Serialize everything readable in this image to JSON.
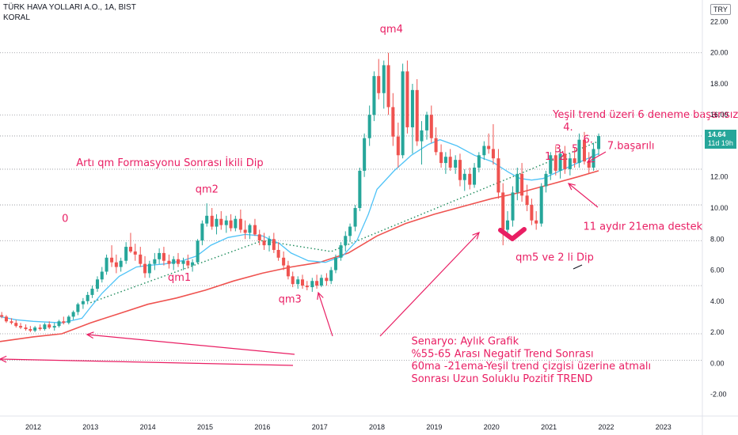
{
  "header": {
    "title": "TÜRK HAVA YOLLARI A.O., 1A, BIST",
    "indicator": "KORAL",
    "currency": "TRY"
  },
  "price_tag": {
    "value": "14.64",
    "countdown": "11d 19h"
  },
  "chart_data": {
    "type": "candlestick",
    "interval": "1 month",
    "yaxis_ticks": [
      "22.00",
      "20.00",
      "18.00",
      "16.00",
      "14.00",
      "12.00",
      "10.00",
      "8.00",
      "6.00",
      "4.00",
      "2.00",
      "0.00",
      "-2.00"
    ],
    "xaxis_ticks": [
      "2012",
      "2013",
      "2014",
      "2015",
      "2016",
      "2017",
      "2018",
      "2019",
      "2020",
      "2021",
      "2022",
      "2023"
    ],
    "ylim": [
      -3.4,
      23.4
    ],
    "xlim": [
      2011.42,
      2023.68
    ],
    "last_price": 14.64,
    "horizontal_levels": [
      20.0,
      16.0,
      14.64,
      12.5,
      10.2,
      7.9,
      5.0,
      1.9,
      0.2
    ],
    "candles": [
      [
        2011.45,
        3.1,
        3.3,
        2.9,
        3.0
      ],
      [
        2011.53,
        3.0,
        3.1,
        2.6,
        2.7
      ],
      [
        2011.62,
        2.7,
        2.9,
        2.5,
        2.6
      ],
      [
        2011.7,
        2.6,
        2.8,
        2.3,
        2.4
      ],
      [
        2011.78,
        2.4,
        2.6,
        2.2,
        2.3
      ],
      [
        2011.87,
        2.3,
        2.5,
        2.1,
        2.2
      ],
      [
        2011.95,
        2.2,
        2.4,
        2.0,
        2.1
      ],
      [
        2012.03,
        2.1,
        2.4,
        2.0,
        2.3
      ],
      [
        2012.12,
        2.3,
        2.5,
        2.1,
        2.2
      ],
      [
        2012.2,
        2.2,
        2.6,
        2.1,
        2.5
      ],
      [
        2012.28,
        2.5,
        2.7,
        2.2,
        2.3
      ],
      [
        2012.37,
        2.3,
        2.6,
        2.1,
        2.4
      ],
      [
        2012.45,
        2.4,
        2.8,
        2.3,
        2.7
      ],
      [
        2012.53,
        2.7,
        3.0,
        2.5,
        2.6
      ],
      [
        2012.62,
        2.6,
        3.1,
        2.5,
        3.0
      ],
      [
        2012.7,
        3.0,
        3.4,
        2.8,
        3.3
      ],
      [
        2012.78,
        3.3,
        3.9,
        3.1,
        3.8
      ],
      [
        2012.87,
        3.8,
        4.2,
        3.5,
        4.0
      ],
      [
        2012.95,
        4.0,
        4.6,
        3.8,
        4.4
      ],
      [
        2013.03,
        4.4,
        5.0,
        4.2,
        4.8
      ],
      [
        2013.12,
        4.8,
        5.6,
        4.6,
        5.4
      ],
      [
        2013.2,
        5.4,
        6.2,
        5.2,
        5.9
      ],
      [
        2013.28,
        5.9,
        7.0,
        5.7,
        6.8
      ],
      [
        2013.37,
        6.8,
        7.6,
        6.2,
        6.5
      ],
      [
        2013.45,
        6.5,
        7.0,
        5.8,
        6.2
      ],
      [
        2013.53,
        6.2,
        6.8,
        5.9,
        6.6
      ],
      [
        2013.62,
        6.6,
        7.8,
        6.4,
        7.5
      ],
      [
        2013.7,
        7.5,
        8.4,
        7.1,
        7.2
      ],
      [
        2013.78,
        7.2,
        7.7,
        6.6,
        7.0
      ],
      [
        2013.87,
        7.0,
        7.5,
        6.2,
        6.4
      ],
      [
        2013.95,
        6.4,
        6.9,
        5.5,
        5.8
      ],
      [
        2014.03,
        5.8,
        6.6,
        5.5,
        6.4
      ],
      [
        2014.12,
        6.4,
        7.1,
        6.0,
        6.7
      ],
      [
        2014.2,
        6.7,
        7.4,
        6.4,
        7.1
      ],
      [
        2014.28,
        7.1,
        7.5,
        6.3,
        6.6
      ],
      [
        2014.37,
        6.6,
        7.0,
        6.1,
        6.4
      ],
      [
        2014.45,
        6.4,
        6.9,
        6.0,
        6.7
      ],
      [
        2014.53,
        6.7,
        7.1,
        6.2,
        6.4
      ],
      [
        2014.62,
        6.4,
        6.8,
        6.0,
        6.6
      ],
      [
        2014.7,
        6.6,
        7.0,
        6.1,
        6.3
      ],
      [
        2014.78,
        6.3,
        6.7,
        5.9,
        6.5
      ],
      [
        2014.87,
        6.5,
        8.0,
        6.4,
        7.9
      ],
      [
        2014.95,
        7.9,
        9.2,
        7.6,
        9.0
      ],
      [
        2015.03,
        9.0,
        10.3,
        8.8,
        9.5
      ],
      [
        2015.12,
        9.5,
        10.0,
        8.6,
        8.8
      ],
      [
        2015.2,
        8.8,
        9.6,
        8.3,
        9.3
      ],
      [
        2015.28,
        9.3,
        9.8,
        8.6,
        8.9
      ],
      [
        2015.37,
        8.9,
        9.5,
        8.4,
        9.2
      ],
      [
        2015.45,
        9.2,
        9.6,
        8.5,
        8.7
      ],
      [
        2015.53,
        8.7,
        9.5,
        8.5,
        9.3
      ],
      [
        2015.62,
        9.3,
        9.9,
        8.4,
        8.6
      ],
      [
        2015.7,
        8.6,
        9.2,
        8.0,
        8.4
      ],
      [
        2015.78,
        8.4,
        9.0,
        8.0,
        8.9
      ],
      [
        2015.87,
        8.9,
        9.3,
        8.2,
        8.3
      ],
      [
        2015.95,
        8.3,
        8.6,
        7.6,
        7.9
      ],
      [
        2016.03,
        7.9,
        8.4,
        7.3,
        7.6
      ],
      [
        2016.12,
        7.6,
        8.2,
        7.2,
        8.0
      ],
      [
        2016.2,
        8.0,
        8.4,
        7.1,
        7.3
      ],
      [
        2016.28,
        7.3,
        7.8,
        6.6,
        6.8
      ],
      [
        2016.37,
        6.8,
        7.2,
        6.0,
        6.3
      ],
      [
        2016.45,
        6.3,
        6.6,
        5.4,
        5.6
      ],
      [
        2016.53,
        5.6,
        5.9,
        4.9,
        5.1
      ],
      [
        2016.62,
        5.1,
        5.6,
        4.8,
        5.4
      ],
      [
        2016.7,
        5.4,
        5.7,
        4.8,
        5.0
      ],
      [
        2016.78,
        5.0,
        5.3,
        4.7,
        4.9
      ],
      [
        2016.87,
        4.9,
        5.5,
        4.6,
        5.3
      ],
      [
        2016.95,
        5.3,
        5.7,
        4.8,
        5.0
      ],
      [
        2017.03,
        5.0,
        5.7,
        4.9,
        5.5
      ],
      [
        2017.12,
        5.5,
        5.8,
        5.0,
        5.3
      ],
      [
        2017.2,
        5.3,
        6.2,
        5.1,
        6.0
      ],
      [
        2017.28,
        6.0,
        7.0,
        5.8,
        6.8
      ],
      [
        2017.37,
        6.8,
        7.8,
        6.6,
        7.6
      ],
      [
        2017.45,
        7.6,
        8.5,
        7.2,
        8.2
      ],
      [
        2017.53,
        8.2,
        9.0,
        7.8,
        8.8
      ],
      [
        2017.62,
        8.8,
        10.2,
        8.5,
        10.0
      ],
      [
        2017.7,
        10.0,
        12.6,
        9.8,
        12.4
      ],
      [
        2017.78,
        12.4,
        14.8,
        12.0,
        14.5
      ],
      [
        2017.87,
        14.5,
        16.6,
        14.0,
        16.0
      ],
      [
        2017.95,
        16.0,
        18.8,
        15.6,
        18.5
      ],
      [
        2018.03,
        18.5,
        19.6,
        17.0,
        17.4
      ],
      [
        2018.12,
        17.4,
        19.5,
        16.4,
        19.2
      ],
      [
        2018.2,
        19.2,
        20.0,
        16.0,
        16.5
      ],
      [
        2018.28,
        16.5,
        17.4,
        14.0,
        14.6
      ],
      [
        2018.37,
        14.6,
        15.5,
        12.6,
        13.4
      ],
      [
        2018.45,
        13.4,
        19.3,
        13.2,
        18.8
      ],
      [
        2018.53,
        18.8,
        19.5,
        14.8,
        15.2
      ],
      [
        2018.62,
        15.2,
        18.0,
        13.5,
        17.6
      ],
      [
        2018.7,
        17.6,
        18.3,
        14.0,
        14.3
      ],
      [
        2018.78,
        14.3,
        15.6,
        12.8,
        15.0
      ],
      [
        2018.87,
        15.0,
        16.2,
        14.4,
        16.0
      ],
      [
        2018.95,
        16.0,
        16.6,
        14.2,
        14.5
      ],
      [
        2019.03,
        14.5,
        15.2,
        13.4,
        13.6
      ],
      [
        2019.12,
        13.6,
        14.1,
        12.6,
        12.9
      ],
      [
        2019.2,
        12.9,
        13.6,
        12.2,
        13.3
      ],
      [
        2019.28,
        13.3,
        13.8,
        12.4,
        12.6
      ],
      [
        2019.37,
        12.6,
        13.4,
        12.2,
        13.1
      ],
      [
        2019.45,
        13.1,
        13.5,
        11.4,
        11.8
      ],
      [
        2019.53,
        11.8,
        12.5,
        11.1,
        12.2
      ],
      [
        2019.62,
        12.2,
        12.6,
        11.2,
        11.5
      ],
      [
        2019.7,
        11.5,
        12.9,
        11.3,
        12.6
      ],
      [
        2019.78,
        12.6,
        13.6,
        12.3,
        13.4
      ],
      [
        2019.87,
        13.4,
        14.3,
        13.1,
        14.0
      ],
      [
        2019.95,
        14.0,
        14.8,
        13.5,
        13.8
      ],
      [
        2020.03,
        13.8,
        15.4,
        12.8,
        13.2
      ],
      [
        2020.12,
        13.2,
        13.8,
        10.6,
        11.0
      ],
      [
        2020.2,
        11.0,
        11.6,
        7.6,
        8.6
      ],
      [
        2020.28,
        8.6,
        9.8,
        8.2,
        9.2
      ],
      [
        2020.37,
        9.2,
        11.4,
        8.8,
        11.0
      ],
      [
        2020.45,
        11.0,
        12.6,
        10.5,
        12.2
      ],
      [
        2020.53,
        12.2,
        12.9,
        10.4,
        10.8
      ],
      [
        2020.62,
        10.8,
        11.5,
        9.8,
        10.2
      ],
      [
        2020.7,
        10.2,
        10.6,
        8.9,
        9.2
      ],
      [
        2020.78,
        9.2,
        9.8,
        8.6,
        9.0
      ],
      [
        2020.87,
        9.0,
        11.6,
        8.8,
        11.4
      ],
      [
        2020.95,
        11.4,
        12.4,
        11.0,
        12.2
      ],
      [
        2021.03,
        12.2,
        13.6,
        11.8,
        13.4
      ],
      [
        2021.12,
        13.4,
        14.0,
        12.1,
        12.4
      ],
      [
        2021.2,
        12.4,
        13.8,
        11.9,
        13.5
      ],
      [
        2021.28,
        13.5,
        14.0,
        12.2,
        12.5
      ],
      [
        2021.37,
        12.5,
        13.5,
        12.1,
        13.2
      ],
      [
        2021.45,
        13.2,
        13.9,
        12.6,
        12.9
      ],
      [
        2021.53,
        12.9,
        14.8,
        12.6,
        14.4
      ],
      [
        2021.62,
        14.4,
        14.9,
        12.8,
        13.0
      ],
      [
        2021.7,
        13.0,
        13.6,
        12.2,
        12.6
      ],
      [
        2021.78,
        12.6,
        14.2,
        12.4,
        13.8
      ],
      [
        2021.87,
        13.8,
        14.8,
        13.4,
        14.64
      ]
    ],
    "ema21": [
      [
        2011.42,
        3.0
      ],
      [
        2011.7,
        2.8
      ],
      [
        2012.0,
        2.7
      ],
      [
        2012.5,
        2.6
      ],
      [
        2012.85,
        2.9
      ],
      [
        2013.0,
        3.6
      ],
      [
        2013.2,
        4.5
      ],
      [
        2013.5,
        5.6
      ],
      [
        2013.8,
        6.2
      ],
      [
        2014.0,
        6.3
      ],
      [
        2014.3,
        6.4
      ],
      [
        2014.6,
        6.6
      ],
      [
        2014.85,
        6.9
      ],
      [
        2015.1,
        7.6
      ],
      [
        2015.4,
        8.1
      ],
      [
        2015.7,
        8.3
      ],
      [
        2016.0,
        8.2
      ],
      [
        2016.3,
        7.7
      ],
      [
        2016.5,
        7.1
      ],
      [
        2016.8,
        6.6
      ],
      [
        2017.1,
        6.5
      ],
      [
        2017.4,
        6.9
      ],
      [
        2017.65,
        7.9
      ],
      [
        2017.85,
        9.6
      ],
      [
        2018.0,
        11.2
      ],
      [
        2018.3,
        12.4
      ],
      [
        2018.6,
        13.4
      ],
      [
        2018.9,
        14.1
      ],
      [
        2019.1,
        14.4
      ],
      [
        2019.4,
        14.0
      ],
      [
        2019.7,
        13.4
      ],
      [
        2020.0,
        13.0
      ],
      [
        2020.3,
        12.3
      ],
      [
        2020.5,
        11.9
      ],
      [
        2020.7,
        11.8
      ],
      [
        2020.9,
        11.9
      ],
      [
        2021.2,
        12.4
      ],
      [
        2021.5,
        12.9
      ],
      [
        2021.87,
        13.5
      ]
    ],
    "ema60": [
      [
        2011.42,
        1.4
      ],
      [
        2012.0,
        1.7
      ],
      [
        2012.5,
        1.9
      ],
      [
        2013.0,
        2.6
      ],
      [
        2013.5,
        3.2
      ],
      [
        2014.0,
        3.8
      ],
      [
        2014.5,
        4.2
      ],
      [
        2015.0,
        4.7
      ],
      [
        2015.5,
        5.3
      ],
      [
        2016.0,
        5.8
      ],
      [
        2016.5,
        6.2
      ],
      [
        2017.0,
        6.5
      ],
      [
        2017.5,
        7.1
      ],
      [
        2018.0,
        8.2
      ],
      [
        2018.5,
        9.0
      ],
      [
        2019.0,
        9.6
      ],
      [
        2019.5,
        10.1
      ],
      [
        2020.0,
        10.6
      ],
      [
        2020.5,
        11.0
      ],
      [
        2021.0,
        11.5
      ],
      [
        2021.5,
        12.0
      ],
      [
        2021.87,
        12.4
      ]
    ],
    "trend_line": [
      [
        2013.0,
        3.9
      ],
      [
        2016.0,
        7.9
      ],
      [
        2017.2,
        7.2
      ],
      [
        2021.87,
        14.3
      ]
    ],
    "annotations": [
      {
        "text": "qm4",
        "x": 2018.05,
        "y": 21.3
      },
      {
        "text": "0",
        "x": 2012.5,
        "y": 9.1
      },
      {
        "text": "qm2",
        "x": 2014.83,
        "y": 11.0
      },
      {
        "text": "qm1",
        "x": 2014.35,
        "y": 5.3
      },
      {
        "text": "qm3",
        "x": 2016.28,
        "y": 3.9
      },
      {
        "text": "Artı qm Formasyonu Sonrası İkili Dip",
        "x": 2012.75,
        "y": 12.7
      },
      {
        "text": "Yeşil trend üzeri 6 deneme başarısız",
        "x": 2021.07,
        "y": 15.8
      },
      {
        "text": "4.",
        "x": 2021.25,
        "y": 15.0
      },
      {
        "text": "3.",
        "x": 2021.1,
        "y": 13.6
      },
      {
        "text": "5",
        "x": 2021.4,
        "y": 13.6
      },
      {
        "text": "6.",
        "x": 2021.6,
        "y": 14.2
      },
      {
        "text": "1.",
        "x": 2020.93,
        "y": 13.1
      },
      {
        "text": "2.",
        "x": 2021.17,
        "y": 13.1
      },
      {
        "text": "7.başarılı",
        "x": 2022.02,
        "y": 13.8
      },
      {
        "text": "11 aydır 21ema destek",
        "x": 2021.6,
        "y": 8.6
      },
      {
        "text": "qm5 ve 2 li Dip",
        "x": 2020.42,
        "y": 6.6
      },
      {
        "text": "Senaryo: Aylık Grafik",
        "x": 2018.6,
        "y": 1.2
      },
      {
        "text": "%55-65 Arası Negatif Trend Sonrası",
        "x": 2018.6,
        "y": 0.4
      },
      {
        "text": "60ma -21ema-Yeşil trend çizgisi üzerine atmalı",
        "x": 2018.6,
        "y": -0.4
      },
      {
        "text": "Sonrası Uzun Soluklu Pozitif TREND",
        "x": 2018.6,
        "y": -1.2
      }
    ]
  },
  "colors": {
    "up": "#26a69a",
    "down": "#ef5350",
    "ema21": "#4fc3f7",
    "ema60": "#ef5350",
    "trend": "#1b8a5a",
    "annotation": "#e91e63",
    "price_tag_bg": "#26a69a"
  }
}
